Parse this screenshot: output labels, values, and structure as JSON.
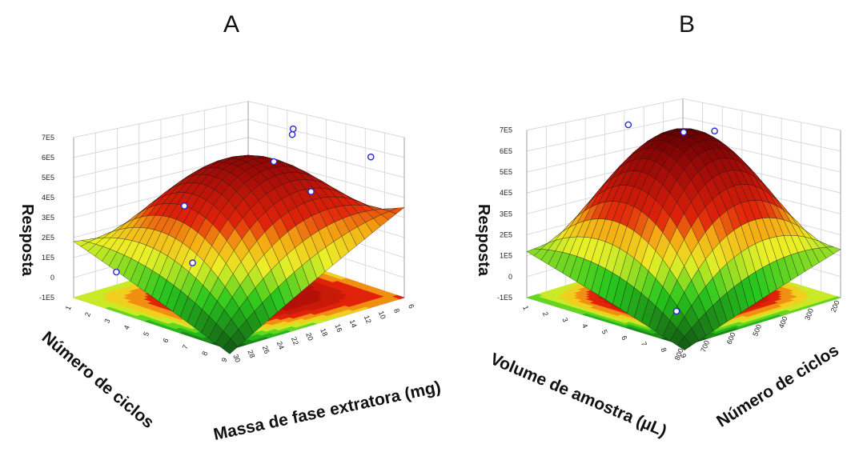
{
  "chart_data": [
    {
      "type": "surface3d",
      "panel_label": "A",
      "zlabel": "Resposta",
      "xlabel": "Massa de fase extratora (mg)",
      "ylabel": "Número de ciclos",
      "z_ticks": [
        "7E5",
        "6E5",
        "5E5",
        "4E5",
        "3E5",
        "2E5",
        "1E5",
        "0",
        "-1E5"
      ],
      "x_ticks": [
        "6",
        "8",
        "10",
        "12",
        "14",
        "16",
        "18",
        "20",
        "22",
        "24",
        "26",
        "28",
        "30"
      ],
      "y_ticks": [
        "1",
        "2",
        "3",
        "4",
        "5",
        "6",
        "7",
        "8",
        "9"
      ],
      "xlim": [
        6,
        30
      ],
      "ylim": [
        1,
        9
      ],
      "zlim": [
        -100000,
        700000
      ],
      "surface_corners": {
        "x6_y9": 70000,
        "x30_y9": 350000,
        "x6_y1": 180000,
        "x30_y1": -120000
      },
      "surface_peak": 590000,
      "design_points": 8,
      "colormap": "green-yellow-red"
    },
    {
      "type": "surface3d",
      "panel_label": "B",
      "zlabel": "Resposta",
      "xlabel": "Volume de amostra (µL)",
      "ylabel": "Número de ciclos",
      "z_ticks": [
        "7E5",
        "6E5",
        "5E5",
        "4E5",
        "3E5",
        "2E5",
        "1E5",
        "0",
        "-1E5"
      ],
      "x_ticks": [
        "200",
        "300",
        "400",
        "500",
        "600",
        "700",
        "800"
      ],
      "y_ticks": [
        "1",
        "2",
        "3",
        "4",
        "5",
        "6",
        "7",
        "8",
        "9"
      ],
      "xlim": [
        200,
        800
      ],
      "ylim": [
        1,
        9
      ],
      "zlim": [
        -100000,
        700000
      ],
      "surface_corners": {
        "x800_y9": 200000,
        "x200_y9": 130000,
        "x800_y1": 120000,
        "x200_y1": -120000
      },
      "surface_peak": 690000,
      "design_points": 4,
      "colormap": "green-yellow-red"
    }
  ]
}
